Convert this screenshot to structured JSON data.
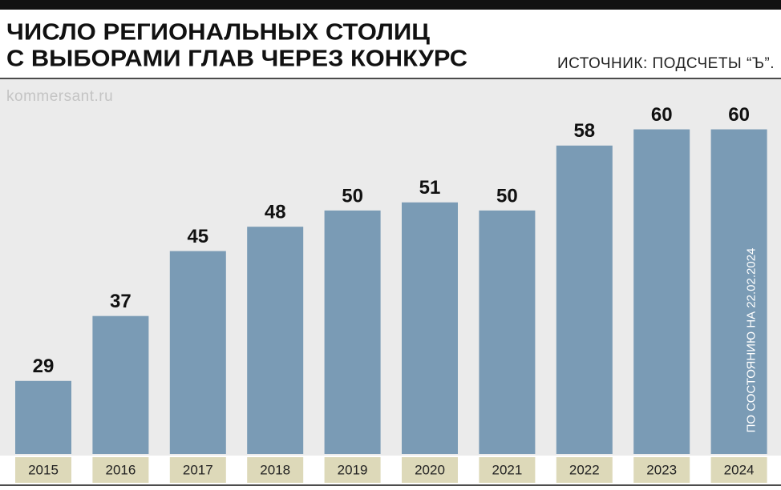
{
  "chart_data": {
    "type": "bar",
    "title": [
      "ЧИСЛО РЕГИОНАЛЬНЫХ СТОЛИЦ",
      "С ВЫБОРАМИ ГЛАВ ЧЕРЕЗ КОНКУРС"
    ],
    "source": "ИСТОЧНИК: ПОДСЧЕТЫ “Ъ”.",
    "watermark": "kommersant.ru",
    "annotation": "ПО СОСТОЯНИЮ НА 22.02.2024",
    "categories": [
      "2015",
      "2016",
      "2017",
      "2018",
      "2019",
      "2020",
      "2021",
      "2022",
      "2023",
      "2024"
    ],
    "values": [
      29,
      37,
      45,
      48,
      50,
      51,
      50,
      58,
      60,
      60
    ],
    "color": "#7a9bb5",
    "category_box_color": "#ddd9b9",
    "ylim": [
      20,
      64
    ],
    "grid": false
  }
}
